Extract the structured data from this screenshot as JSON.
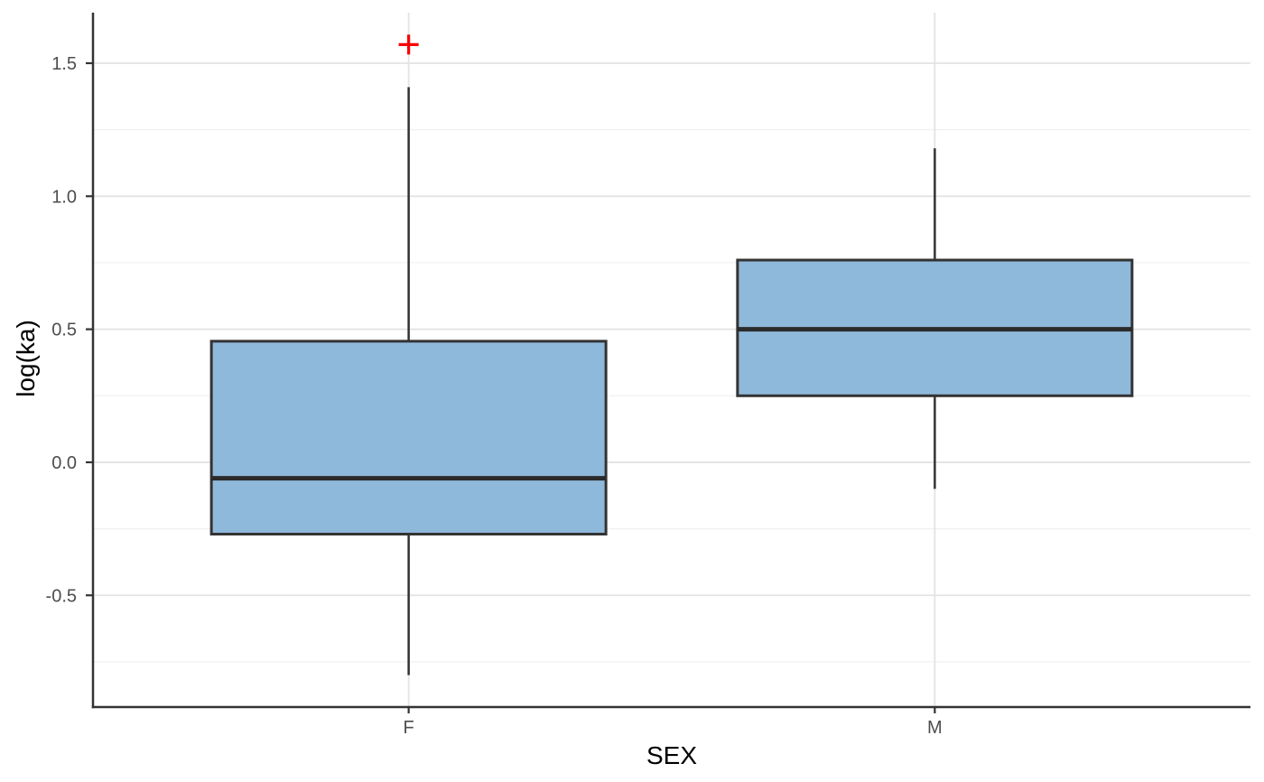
{
  "chart_data": {
    "type": "boxplot",
    "title": "",
    "xlabel": "SEX",
    "ylabel": "log(ka)",
    "categories": [
      "F",
      "M"
    ],
    "series": [
      {
        "category": "F",
        "whisker_low": -0.8,
        "q1": -0.27,
        "median": -0.06,
        "q3": 0.455,
        "whisker_high": 1.41,
        "outliers": [
          1.57
        ]
      },
      {
        "category": "M",
        "whisker_low": -0.1,
        "q1": 0.25,
        "median": 0.5,
        "q3": 0.76,
        "whisker_high": 1.18,
        "outliers": []
      }
    ],
    "y_ticks": [
      {
        "value": -0.5,
        "label": "-0.5"
      },
      {
        "value": 0.0,
        "label": "0.0"
      },
      {
        "value": 0.5,
        "label": "0.5"
      },
      {
        "value": 1.0,
        "label": "1.0"
      },
      {
        "value": 1.5,
        "label": "1.5"
      }
    ],
    "y_minor_ticks": [
      -0.75,
      -0.25,
      0.25,
      0.75,
      1.25
    ],
    "ylim": [
      -0.92,
      1.69
    ],
    "grid": true,
    "legend": false,
    "outlier_marker": "plus",
    "colors": {
      "box_fill": "#8FB9DB",
      "box_stroke": "#333333",
      "median_stroke": "#2B2B2B",
      "whisker_stroke": "#333333",
      "outlier": "#F80000",
      "grid_major": "#E3E3E3",
      "grid_minor": "#F0F0F0",
      "axis_line": "#333333",
      "tick_mark": "#333333",
      "tick_label": "#4D4D4D",
      "axis_title": "#000000",
      "background": "#FFFFFF"
    }
  }
}
